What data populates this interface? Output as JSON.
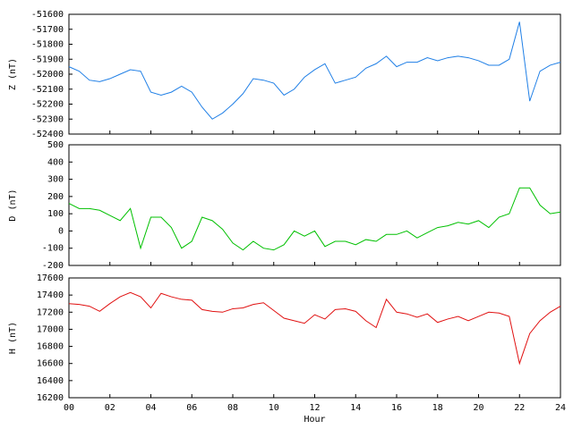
{
  "chart_data": [
    {
      "type": "line",
      "ylabel": "Z (nT)",
      "color": "#1f7fe6",
      "x": [
        0,
        0.5,
        1,
        1.5,
        2,
        2.5,
        3,
        3.5,
        4,
        4.5,
        5,
        5.5,
        6,
        6.5,
        7,
        7.5,
        8,
        8.5,
        9,
        9.5,
        10,
        10.5,
        11,
        11.5,
        12,
        12.5,
        13,
        13.5,
        14,
        14.5,
        15,
        15.5,
        16,
        16.5,
        17,
        17.5,
        18,
        18.5,
        19,
        19.5,
        20,
        20.5,
        21,
        21.5,
        22,
        22.5,
        23,
        23.5,
        24
      ],
      "values": [
        -51950,
        -51980,
        -52040,
        -52050,
        -52030,
        -52000,
        -51970,
        -51980,
        -52120,
        -52140,
        -52120,
        -52080,
        -52120,
        -52220,
        -52300,
        -52260,
        -52200,
        -52130,
        -52030,
        -52040,
        -52060,
        -52140,
        -52100,
        -52020,
        -51970,
        -51930,
        -52060,
        -52040,
        -52020,
        -51960,
        -51930,
        -51880,
        -51950,
        -51920,
        -51920,
        -51890,
        -51910,
        -51890,
        -51880,
        -51890,
        -51910,
        -51940,
        -51940,
        -51900,
        -51650,
        -52180,
        -51980,
        -51940,
        -51920
      ],
      "xlim": [
        0,
        24
      ],
      "xticks": [
        0,
        2,
        4,
        6,
        8,
        10,
        12,
        14,
        16,
        18,
        20,
        22,
        24
      ],
      "ylim": [
        -52400,
        -51600
      ],
      "yticks": [
        -51600,
        -51700,
        -51800,
        -51900,
        -52000,
        -52100,
        -52200,
        -52300,
        -52400
      ]
    },
    {
      "type": "line",
      "ylabel": "D (nT)",
      "color": "#00c000",
      "x": [
        0,
        0.5,
        1,
        1.5,
        2,
        2.5,
        3,
        3.5,
        4,
        4.5,
        5,
        5.5,
        6,
        6.5,
        7,
        7.5,
        8,
        8.5,
        9,
        9.5,
        10,
        10.5,
        11,
        11.5,
        12,
        12.5,
        13,
        13.5,
        14,
        14.5,
        15,
        15.5,
        16,
        16.5,
        17,
        17.5,
        18,
        18.5,
        19,
        19.5,
        20,
        20.5,
        21,
        21.5,
        22,
        22.5,
        23,
        23.5,
        24
      ],
      "values": [
        160,
        130,
        130,
        120,
        90,
        60,
        130,
        -100,
        80,
        80,
        20,
        -100,
        -60,
        80,
        60,
        10,
        -70,
        -110,
        -60,
        -100,
        -110,
        -80,
        0,
        -30,
        0,
        -90,
        -60,
        -60,
        -80,
        -50,
        -60,
        -20,
        -20,
        0,
        -40,
        -10,
        20,
        30,
        50,
        40,
        60,
        20,
        80,
        100,
        250,
        250,
        150,
        100,
        110
      ],
      "xlim": [
        0,
        24
      ],
      "xticks": [
        0,
        2,
        4,
        6,
        8,
        10,
        12,
        14,
        16,
        18,
        20,
        22,
        24
      ],
      "ylim": [
        -200,
        500
      ],
      "yticks": [
        500,
        400,
        300,
        200,
        100,
        0,
        -100,
        -200
      ]
    },
    {
      "type": "line",
      "ylabel": "H (nT)",
      "xlabel": "Hour",
      "color": "#e01010",
      "x": [
        0,
        0.5,
        1,
        1.5,
        2,
        2.5,
        3,
        3.5,
        4,
        4.5,
        5,
        5.5,
        6,
        6.5,
        7,
        7.5,
        8,
        8.5,
        9,
        9.5,
        10,
        10.5,
        11,
        11.5,
        12,
        12.5,
        13,
        13.5,
        14,
        14.5,
        15,
        15.5,
        16,
        16.5,
        17,
        17.5,
        18,
        18.5,
        19,
        19.5,
        20,
        20.5,
        21,
        21.5,
        22,
        22.5,
        23,
        23.5,
        24
      ],
      "values": [
        17300,
        17290,
        17270,
        17210,
        17300,
        17380,
        17430,
        17380,
        17250,
        17420,
        17380,
        17350,
        17340,
        17230,
        17210,
        17200,
        17240,
        17250,
        17290,
        17310,
        17220,
        17130,
        17100,
        17070,
        17170,
        17120,
        17230,
        17240,
        17210,
        17100,
        17020,
        17350,
        17200,
        17180,
        17140,
        17180,
        17080,
        17120,
        17150,
        17100,
        17150,
        17200,
        17190,
        17150,
        16600,
        16950,
        17100,
        17200,
        17270
      ],
      "xlim": [
        0,
        24
      ],
      "xticks": [
        {
          "value": 0,
          "label": "00"
        },
        {
          "value": 2,
          "label": "02"
        },
        {
          "value": 4,
          "label": "04"
        },
        {
          "value": 6,
          "label": "06"
        },
        {
          "value": 8,
          "label": "08"
        },
        {
          "value": 10,
          "label": "10"
        },
        {
          "value": 12,
          "label": "12"
        },
        {
          "value": 14,
          "label": "14"
        },
        {
          "value": 16,
          "label": "16"
        },
        {
          "value": 18,
          "label": "18"
        },
        {
          "value": 20,
          "label": "20"
        },
        {
          "value": 22,
          "label": "22"
        },
        {
          "value": 24,
          "label": "24"
        }
      ],
      "ylim": [
        16200,
        17600
      ],
      "yticks": [
        17600,
        17400,
        17200,
        17000,
        16800,
        16600,
        16400,
        16200
      ]
    }
  ]
}
